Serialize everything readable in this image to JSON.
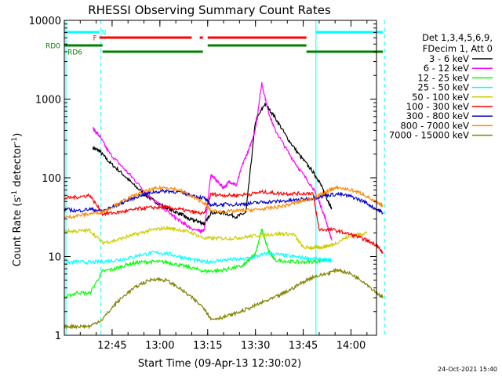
{
  "colors": {
    "background": "#ffffff",
    "axis": "#000000",
    "cyan": "#00ffff",
    "red": "#ff0000",
    "green": "#008000"
  },
  "chart_data": {
    "type": "line",
    "title": "RHESSI Observing Summary Count Rates",
    "xlabel": "Start Time (09-Apr-13 12:30:02)",
    "ylabel_main": "Count Rate (s",
    "ylabel_sup1": "-1",
    "ylabel_mid": " detector",
    "ylabel_sup2": "-1",
    "ylabel_end": ")",
    "y_scale": "log",
    "ylim": [
      1,
      10000
    ],
    "xlim": [
      "12:30:02",
      "14:08:00"
    ],
    "x_ticks": [
      {
        "t": 15.0,
        "label": "12:45"
      },
      {
        "t": 30.0,
        "label": "13:00"
      },
      {
        "t": 45.0,
        "label": "13:15"
      },
      {
        "t": 60.0,
        "label": "13:30"
      },
      {
        "t": 75.0,
        "label": "13:45"
      },
      {
        "t": 90.0,
        "label": "14:00"
      }
    ],
    "y_ticks": [
      {
        "v": 1,
        "label": "1"
      },
      {
        "v": 10,
        "label": "10"
      },
      {
        "v": 100,
        "label": "100"
      },
      {
        "v": 1000,
        "label": "1000"
      },
      {
        "v": 10000,
        "label": "10000"
      }
    ],
    "legend_header": [
      "Det 1,3,4,5,6,9,",
      "FDecim 1, Att 0"
    ],
    "legend_position": "right",
    "series": [
      {
        "name": "3 - 6 keV",
        "color": "#000000",
        "points": [
          [
            9,
            240
          ],
          [
            11,
            220
          ],
          [
            14,
            160
          ],
          [
            18,
            115
          ],
          [
            22,
            80
          ],
          [
            26,
            58
          ],
          [
            30,
            46
          ],
          [
            34,
            38
          ],
          [
            37,
            34
          ],
          [
            39,
            30
          ],
          [
            42,
            28
          ],
          [
            44,
            26
          ],
          [
            46,
            36
          ],
          [
            50,
            36
          ],
          [
            54,
            32
          ],
          [
            57,
            36
          ],
          [
            60,
            520
          ],
          [
            63,
            880
          ],
          [
            66,
            600
          ],
          [
            70,
            320
          ],
          [
            74,
            190
          ],
          [
            78,
            120
          ],
          [
            80,
            90
          ],
          [
            82,
            60
          ],
          [
            84,
            40
          ]
        ]
      },
      {
        "name": "6 - 12 keV",
        "color": "#ff00ff",
        "points": [
          [
            9,
            420
          ],
          [
            11,
            340
          ],
          [
            14,
            210
          ],
          [
            18,
            140
          ],
          [
            22,
            95
          ],
          [
            26,
            62
          ],
          [
            30,
            45
          ],
          [
            34,
            33
          ],
          [
            37,
            27
          ],
          [
            39,
            24
          ],
          [
            42,
            21
          ],
          [
            44,
            22
          ],
          [
            46,
            110
          ],
          [
            48,
            90
          ],
          [
            50,
            75
          ],
          [
            52,
            90
          ],
          [
            54,
            80
          ],
          [
            56,
            150
          ],
          [
            58,
            230
          ],
          [
            60,
            420
          ],
          [
            62,
            1600
          ],
          [
            64,
            700
          ],
          [
            66,
            420
          ],
          [
            70,
            220
          ],
          [
            74,
            125
          ],
          [
            78,
            75
          ],
          [
            80,
            50
          ],
          [
            82,
            30
          ],
          [
            84,
            16
          ]
        ]
      },
      {
        "name": "12 - 25 keV",
        "color": "#00ff00",
        "points": [
          [
            0,
            3
          ],
          [
            4,
            3.5
          ],
          [
            8,
            3.4
          ],
          [
            12,
            6.5
          ],
          [
            16,
            7
          ],
          [
            20,
            8
          ],
          [
            24,
            8.5
          ],
          [
            28,
            8.6
          ],
          [
            32,
            8.5
          ],
          [
            36,
            7.8
          ],
          [
            40,
            7.2
          ],
          [
            44,
            6.5
          ],
          [
            48,
            6.6
          ],
          [
            52,
            7.0
          ],
          [
            56,
            7.6
          ],
          [
            58,
            9
          ],
          [
            60,
            11
          ],
          [
            62,
            22
          ],
          [
            64,
            12
          ],
          [
            66,
            9
          ],
          [
            70,
            8.7
          ],
          [
            74,
            8.5
          ],
          [
            78,
            8.6
          ],
          [
            82,
            9.0
          ]
        ]
      },
      {
        "name": "25 - 50 keV",
        "color": "#00ffff",
        "points": [
          [
            0,
            8.3
          ],
          [
            4,
            8.6
          ],
          [
            8,
            8.4
          ],
          [
            12,
            8.6
          ],
          [
            16,
            9
          ],
          [
            20,
            9.5
          ],
          [
            24,
            10.5
          ],
          [
            28,
            11.2
          ],
          [
            32,
            11
          ],
          [
            36,
            10
          ],
          [
            40,
            9.2
          ],
          [
            44,
            8.5
          ],
          [
            48,
            8.8
          ],
          [
            52,
            9.2
          ],
          [
            56,
            9.2
          ],
          [
            60,
            10
          ],
          [
            64,
            11
          ],
          [
            68,
            10.5
          ],
          [
            72,
            10
          ],
          [
            76,
            9.6
          ],
          [
            80,
            9.2
          ],
          [
            82,
            9
          ],
          [
            84,
            9
          ]
        ]
      },
      {
        "name": "50 - 100 keV",
        "color": "#cccc00",
        "points": [
          [
            0,
            21
          ],
          [
            4,
            21
          ],
          [
            8,
            21.5
          ],
          [
            12,
            15
          ],
          [
            16,
            16
          ],
          [
            20,
            18
          ],
          [
            24,
            20
          ],
          [
            28,
            22
          ],
          [
            32,
            23
          ],
          [
            36,
            22
          ],
          [
            40,
            20
          ],
          [
            44,
            17
          ],
          [
            48,
            17
          ],
          [
            52,
            17
          ],
          [
            56,
            17.5
          ],
          [
            60,
            18.5
          ],
          [
            64,
            19
          ],
          [
            68,
            19.5
          ],
          [
            72,
            19.2
          ],
          [
            75,
            13
          ],
          [
            78,
            13
          ],
          [
            80,
            13
          ],
          [
            82,
            13.5
          ],
          [
            84,
            14
          ],
          [
            88,
            17
          ],
          [
            92,
            19
          ],
          [
            95,
            20
          ]
        ]
      },
      {
        "name": "100 - 300 keV",
        "color": "#ff0000",
        "points": [
          [
            0,
            55
          ],
          [
            4,
            57
          ],
          [
            8,
            60
          ],
          [
            12,
            35
          ],
          [
            16,
            36
          ],
          [
            20,
            38
          ],
          [
            24,
            41
          ],
          [
            28,
            42
          ],
          [
            32,
            42
          ],
          [
            36,
            40
          ],
          [
            40,
            37
          ],
          [
            44,
            35
          ],
          [
            46,
            62
          ],
          [
            50,
            60
          ],
          [
            54,
            60
          ],
          [
            58,
            62
          ],
          [
            62,
            66
          ],
          [
            66,
            64
          ],
          [
            70,
            63
          ],
          [
            74,
            63
          ],
          [
            78,
            64
          ],
          [
            80,
            22
          ],
          [
            84,
            22
          ],
          [
            88,
            20
          ],
          [
            92,
            18
          ],
          [
            95,
            16
          ],
          [
            98,
            14
          ],
          [
            100,
            11
          ]
        ]
      },
      {
        "name": "300 - 800 keV",
        "color": "#0000cc",
        "points": [
          [
            0,
            40
          ],
          [
            4,
            38
          ],
          [
            8,
            40
          ],
          [
            12,
            38
          ],
          [
            16,
            44
          ],
          [
            20,
            52
          ],
          [
            24,
            60
          ],
          [
            28,
            66
          ],
          [
            32,
            68
          ],
          [
            36,
            66
          ],
          [
            40,
            60
          ],
          [
            44,
            55
          ],
          [
            46,
            45
          ],
          [
            50,
            46
          ],
          [
            54,
            46
          ],
          [
            58,
            47
          ],
          [
            62,
            49
          ],
          [
            66,
            50
          ],
          [
            70,
            51
          ],
          [
            74,
            53
          ],
          [
            78,
            55
          ],
          [
            82,
            60
          ],
          [
            86,
            62
          ],
          [
            90,
            58
          ],
          [
            94,
            50
          ],
          [
            98,
            40
          ],
          [
            100,
            36
          ]
        ]
      },
      {
        "name": "800 - 7000 keV",
        "color": "#ff8800",
        "points": [
          [
            0,
            31
          ],
          [
            4,
            33
          ],
          [
            8,
            35
          ],
          [
            12,
            37
          ],
          [
            16,
            45
          ],
          [
            20,
            55
          ],
          [
            24,
            64
          ],
          [
            28,
            72
          ],
          [
            32,
            76
          ],
          [
            36,
            70
          ],
          [
            40,
            58
          ],
          [
            44,
            48
          ],
          [
            46,
            38
          ],
          [
            50,
            37
          ],
          [
            54,
            38
          ],
          [
            58,
            39
          ],
          [
            62,
            40
          ],
          [
            66,
            42
          ],
          [
            70,
            45
          ],
          [
            74,
            50
          ],
          [
            78,
            55
          ],
          [
            82,
            65
          ],
          [
            84,
            72
          ],
          [
            86,
            75
          ],
          [
            90,
            70
          ],
          [
            94,
            62
          ],
          [
            98,
            48
          ],
          [
            100,
            44
          ]
        ]
      },
      {
        "name": "7000 - 15000 keV",
        "color": "#808000",
        "points": [
          [
            0,
            1.3
          ],
          [
            4,
            1.3
          ],
          [
            8,
            1.3
          ],
          [
            12,
            1.6
          ],
          [
            16,
            2.5
          ],
          [
            20,
            3.5
          ],
          [
            24,
            4.5
          ],
          [
            28,
            5.2
          ],
          [
            32,
            5.0
          ],
          [
            36,
            4.0
          ],
          [
            40,
            3.0
          ],
          [
            44,
            2.2
          ],
          [
            46,
            1.6
          ],
          [
            50,
            1.7
          ],
          [
            54,
            1.9
          ],
          [
            58,
            2.2
          ],
          [
            62,
            2.6
          ],
          [
            66,
            3.0
          ],
          [
            70,
            3.6
          ],
          [
            74,
            4.5
          ],
          [
            78,
            5.5
          ],
          [
            82,
            6.0
          ],
          [
            86,
            6.8
          ],
          [
            90,
            6.0
          ],
          [
            94,
            4.8
          ],
          [
            98,
            3.5
          ],
          [
            100,
            3.0
          ]
        ]
      }
    ],
    "flags": [
      {
        "label": "N",
        "color": "#00ffff",
        "segments": [
          [
            0,
            11
          ],
          [
            79,
            100
          ]
        ],
        "label_at": 11.5
      },
      {
        "label": "F",
        "color": "#ff0000",
        "segments": [
          [
            11,
            40
          ],
          [
            42.5,
            43.5
          ],
          [
            45,
            76
          ]
        ],
        "label_at": 9
      },
      {
        "label": "RD0",
        "color": "#008000",
        "segments": [
          [
            0,
            12
          ],
          [
            45,
            76
          ]
        ],
        "label_at": -5
      },
      {
        "label": "RD6",
        "color": "#008000",
        "segments": [
          [
            12,
            43.5
          ],
          [
            76,
            100
          ]
        ],
        "label_at": 1
      }
    ],
    "vertical_markers": [
      {
        "t": 0.5,
        "color": "#00ffff",
        "style": "solid"
      },
      {
        "t": 11.5,
        "color": "#00ffff",
        "style": "dashed"
      },
      {
        "t": 79.0,
        "color": "#00ffff",
        "style": "solid"
      },
      {
        "t": 100.5,
        "color": "#00ffff",
        "style": "dashed"
      }
    ]
  },
  "footer": {
    "timestamp": "24-Oct-2021 15:40"
  }
}
